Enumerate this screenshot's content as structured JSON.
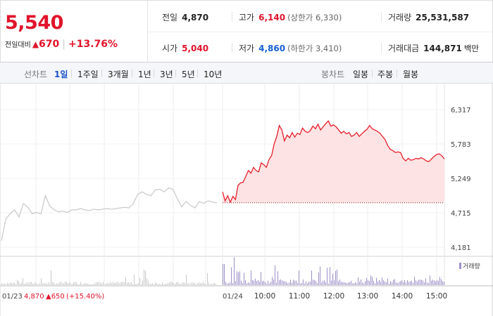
{
  "price": {
    "current": "5,540",
    "change_label": "전일대비",
    "change_arrow": "▲",
    "change_value": "670",
    "change_pct": "+13.76%"
  },
  "stats": {
    "prev_close": {
      "label": "전일",
      "value": "4,870"
    },
    "high": {
      "label": "고가",
      "value": "6,140",
      "limit": "(상한가 6,330)"
    },
    "volume": {
      "label": "거래량",
      "value": "25,531,587"
    },
    "open": {
      "label": "시가",
      "value": "5,040"
    },
    "low": {
      "label": "저가",
      "value": "4,860",
      "limit": "(하한가 3,410)"
    },
    "turnover": {
      "label": "거래대금",
      "value": "144,871",
      "unit": "백만"
    }
  },
  "tabs": {
    "line_label": "선차트",
    "line_items": [
      "1일",
      "1주일",
      "3개월",
      "1년",
      "3년",
      "5년",
      "10년"
    ],
    "active": "1일",
    "candle_label": "봉차트",
    "candle_items": [
      "일봉",
      "주봉",
      "월봉"
    ]
  },
  "colors": {
    "up": "#e0142b",
    "down": "#1560d4",
    "price_line_today": "#e8202c",
    "price_fill_today": "#fde3e4",
    "price_line_prev": "#c8c8c8",
    "volume_today": "#9d8fc9",
    "volume_prev": "#c8c8c8"
  },
  "chart_data": {
    "type": "line",
    "y_ticks": [
      "6,317",
      "5,783",
      "5,249",
      "4,715",
      "4,181"
    ],
    "ylim": [
      4181,
      6317
    ],
    "prev_close": 4870,
    "prev_day": {
      "date": "01/23",
      "close": "4,870",
      "change": "▲650",
      "pct": "(+15.40%)",
      "prices": [
        4280,
        4620,
        4700,
        4760,
        4650,
        4860,
        4800,
        4700,
        4720,
        4700,
        4980,
        4820,
        4760,
        4730,
        4740,
        4720,
        4760,
        4760,
        4780,
        4760,
        4750,
        4770,
        4760,
        4770,
        4780,
        4770,
        4780,
        4790,
        4800,
        4790,
        4860,
        5000,
        5040,
        5000,
        4980,
        5070,
        5080,
        5040,
        5100,
        5080,
        4930,
        4810,
        4890,
        4830,
        4790,
        4890,
        4860,
        4900,
        4880,
        4870
      ]
    },
    "today": {
      "date": "01/24",
      "time_labels": [
        "10:00",
        "11:00",
        "12:00",
        "13:00",
        "14:00",
        "15:00"
      ],
      "prices": [
        5040,
        4900,
        4980,
        4880,
        4970,
        4920,
        5140,
        5180,
        5190,
        5280,
        5370,
        5330,
        5420,
        5370,
        5350,
        5490,
        5460,
        5420,
        5540,
        5600,
        5780,
        5900,
        6070,
        6000,
        5830,
        5920,
        5880,
        5960,
        5890,
        5950,
        5930,
        6030,
        5980,
        5960,
        5990,
        6060,
        6020,
        6090,
        6000,
        6050,
        6100,
        6140,
        6060,
        6080,
        6050,
        6000,
        5950,
        5980,
        5940,
        5960,
        5900,
        5920,
        5960,
        5900,
        5940,
        5980,
        6010,
        6070,
        6020,
        6000,
        5980,
        5950,
        5900,
        5850,
        5760,
        5700,
        5680,
        5650,
        5660,
        5650,
        5560,
        5520,
        5560,
        5530,
        5540,
        5560,
        5550,
        5570,
        5550,
        5520,
        5510,
        5550,
        5590,
        5620,
        5630,
        5600,
        5550
      ],
      "volume_label": "거래량"
    }
  }
}
